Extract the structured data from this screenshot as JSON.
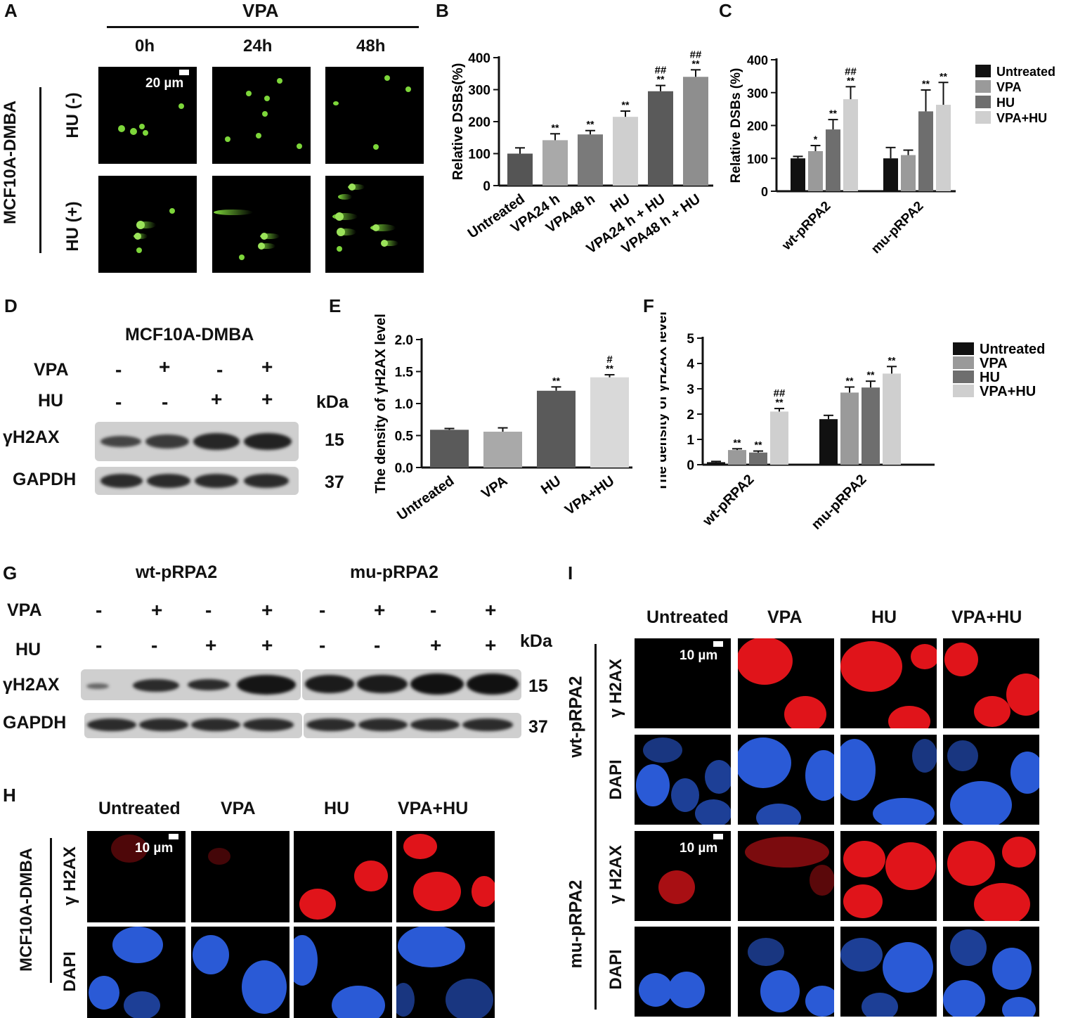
{
  "panels": {
    "A": {
      "letter": "A",
      "treatment": "VPA",
      "timepoints": [
        "0h",
        "24h",
        "48h"
      ],
      "cell_line": "MCF10A-DMBA",
      "rows": [
        "HU (-)",
        "HU (+)"
      ],
      "scale": "20 µm"
    },
    "B": {
      "letter": "B"
    },
    "C": {
      "letter": "C"
    },
    "D": {
      "letter": "D",
      "title": "MCF10A-DMBA",
      "rows": [
        {
          "label": "VPA",
          "signs": [
            "-",
            "+",
            "-",
            "+"
          ]
        },
        {
          "label": "HU",
          "signs": [
            "-",
            "-",
            "+",
            "+"
          ]
        }
      ],
      "kda_label": "kDa",
      "bands": [
        {
          "label": "γH2AX",
          "kda": "15"
        },
        {
          "label": "GAPDH",
          "kda": "37"
        }
      ]
    },
    "E": {
      "letter": "E"
    },
    "F": {
      "letter": "F"
    },
    "G": {
      "letter": "G",
      "groups": [
        "wt-pRPA2",
        "mu-pRPA2"
      ],
      "rows": [
        {
          "label": "VPA",
          "signs": [
            "-",
            "+",
            "-",
            "+",
            "-",
            "+",
            "-",
            "+"
          ]
        },
        {
          "label": "HU",
          "signs": [
            "-",
            "-",
            "+",
            "+",
            "-",
            "-",
            "+",
            "+"
          ]
        }
      ],
      "kda_label": "kDa",
      "bands": [
        {
          "label": "γH2AX",
          "kda": "15"
        },
        {
          "label": "GAPDH",
          "kda": "37"
        }
      ]
    },
    "H": {
      "letter": "H",
      "columns": [
        "Untreated",
        "VPA",
        "HU",
        "VPA+HU"
      ],
      "cell_line": "MCF10A-DMBA",
      "rows": [
        "γ H2AX",
        "DAPI"
      ],
      "scale": "10 µm"
    },
    "I": {
      "letter": "I",
      "columns": [
        "Untreated",
        "VPA",
        "HU",
        "VPA+HU"
      ],
      "groups": [
        "wt-pRPA2",
        "mu-pRPA2"
      ],
      "rows": [
        "γ H2AX",
        "DAPI"
      ],
      "scale": "10 µm"
    }
  },
  "colors": {
    "untreated": "#111111",
    "vpa": "#9a9a9a",
    "hu": "#6e6e6e",
    "vpa_hu": "#cfcfcf",
    "comet": "#7dd63a",
    "gh2ax": "#e0141a",
    "dapi": "#2a5ad6"
  },
  "chart_data": [
    {
      "id": "B",
      "type": "bar",
      "categories": [
        "Untreated",
        "VPA24 h",
        "VPA48 h",
        "HU",
        "VPA24 h + HU",
        "VPA48 h + HU"
      ],
      "values": [
        100,
        142,
        160,
        215,
        295,
        340
      ],
      "errors": [
        18,
        20,
        12,
        18,
        18,
        22
      ],
      "annotations": [
        "",
        "**",
        "**",
        "**",
        "##\n**",
        "##\n**"
      ],
      "bar_colors": [
        "#555555",
        "#a9a9a9",
        "#7a7a7a",
        "#cfcfcf",
        "#5a5a5a",
        "#8e8e8e"
      ],
      "ylabel": "Relative DSBs(%)",
      "xlabel": "",
      "ylim": [
        0,
        400
      ],
      "yticks": [
        0,
        100,
        200,
        300,
        400
      ]
    },
    {
      "id": "C",
      "type": "bar",
      "categories": [
        "wt-pRPA2",
        "mu-pRPA2"
      ],
      "series": [
        {
          "name": "Untreated",
          "values": [
            100,
            100
          ],
          "errors": [
            6,
            33
          ],
          "annotations": [
            "",
            ""
          ]
        },
        {
          "name": "VPA",
          "values": [
            122,
            110
          ],
          "errors": [
            17,
            15
          ],
          "annotations": [
            "*",
            ""
          ]
        },
        {
          "name": "HU",
          "values": [
            188,
            243
          ],
          "errors": [
            30,
            65
          ],
          "annotations": [
            "**",
            "**"
          ]
        },
        {
          "name": "VPA+HU",
          "values": [
            280,
            263
          ],
          "errors": [
            38,
            68
          ],
          "annotations": [
            "##\n**",
            "**"
          ]
        }
      ],
      "ylabel": "Relative DSBs (%)",
      "xlabel": "",
      "ylim": [
        0,
        400
      ],
      "yticks": [
        0,
        100,
        200,
        300,
        400
      ],
      "legend": "right"
    },
    {
      "id": "E",
      "type": "bar",
      "categories": [
        "Untreated",
        "VPA",
        "HU",
        "VPA+HU"
      ],
      "values": [
        0.59,
        0.56,
        1.2,
        1.41
      ],
      "errors": [
        0.02,
        0.06,
        0.06,
        0.04
      ],
      "annotations": [
        "",
        "",
        "**",
        "#\n**"
      ],
      "bar_colors": [
        "#5a5a5a",
        "#a9a9a9",
        "#5a5a5a",
        "#d9d9d9"
      ],
      "ylabel": "The density of γH2AX level",
      "xlabel": "",
      "ylim": [
        0,
        2.0
      ],
      "yticks": [
        "0.0",
        "0.5",
        "1.0",
        "1.5",
        "2.0"
      ]
    },
    {
      "id": "F",
      "type": "bar",
      "categories": [
        "wt-pRPA2",
        "mu-pRPA2"
      ],
      "series": [
        {
          "name": "Untreated",
          "values": [
            0.1,
            1.8
          ],
          "errors": [
            0.03,
            0.15
          ],
          "annotations": [
            "",
            ""
          ]
        },
        {
          "name": "VPA",
          "values": [
            0.58,
            2.85
          ],
          "errors": [
            0.05,
            0.22
          ],
          "annotations": [
            "**",
            "**"
          ]
        },
        {
          "name": "HU",
          "values": [
            0.48,
            3.05
          ],
          "errors": [
            0.06,
            0.25
          ],
          "annotations": [
            "**",
            "**"
          ]
        },
        {
          "name": "VPA+HU",
          "values": [
            2.1,
            3.6
          ],
          "errors": [
            0.12,
            0.28
          ],
          "annotations": [
            "##\n**",
            "**"
          ]
        }
      ],
      "ylabel": "The density of γH2AX level",
      "xlabel": "",
      "ylim": [
        0,
        5
      ],
      "yticks": [
        0,
        1,
        2,
        3,
        4,
        5
      ],
      "legend": "right"
    }
  ]
}
